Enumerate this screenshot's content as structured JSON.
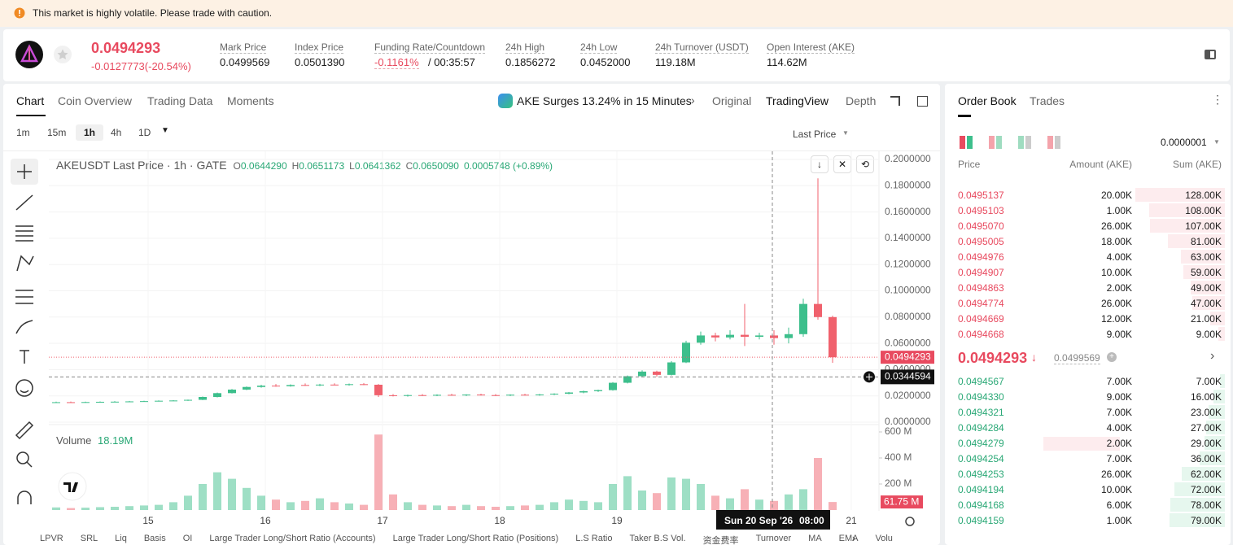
{
  "banner": {
    "text": "This market is highly volatile. Please trade with caution."
  },
  "ticker": {
    "price": "0.0494293",
    "change": "-0.0127773(-20.54%)",
    "stats": [
      {
        "label": "Mark Price",
        "value": "0.0499569"
      },
      {
        "label": "Index Price",
        "value": "0.0501390"
      },
      {
        "label": "Funding Rate/Countdown",
        "value": "-0.1161%",
        "extra": "/ 00:35:57"
      },
      {
        "label": "24h High",
        "value": "0.1856272"
      },
      {
        "label": "24h Low",
        "value": "0.0452000"
      },
      {
        "label": "24h Turnover (USDT)",
        "value": "119.18M"
      },
      {
        "label": "Open Interest (AKE)",
        "value": "114.62M"
      }
    ]
  },
  "chart_tabs": [
    "Chart",
    "Coin Overview",
    "Trading Data",
    "Moments"
  ],
  "news": "AKE Surges 13.24% in 15 Minutes",
  "view_tabs": [
    "Original",
    "TradingView",
    "Depth"
  ],
  "intervals": [
    "1m",
    "15m",
    "1h",
    "4h",
    "1D"
  ],
  "price_type": "Last Price",
  "chart_data": {
    "type": "candlestick",
    "title": "AKEUSDT Last Price · 1h · GATE",
    "ohlc_labels": [
      {
        "key": "O",
        "value": "0.0644290"
      },
      {
        "key": "H",
        "value": "0.0651173"
      },
      {
        "key": "L",
        "value": "0.0641362"
      },
      {
        "key": "C",
        "value": "0.0650090"
      }
    ],
    "change_label": "0.0005748 (+0.89%)",
    "up_color": "#3dbf8c",
    "down_color": "#f0616d",
    "candles": [
      [
        0.015,
        0.0156,
        0.0147,
        0.0152
      ],
      [
        0.0152,
        0.0157,
        0.0149,
        0.0151
      ],
      [
        0.0151,
        0.0156,
        0.0148,
        0.0153
      ],
      [
        0.0153,
        0.0158,
        0.015,
        0.0155
      ],
      [
        0.0155,
        0.016,
        0.0152,
        0.0156
      ],
      [
        0.0156,
        0.0162,
        0.0153,
        0.0158
      ],
      [
        0.0158,
        0.0163,
        0.0155,
        0.016
      ],
      [
        0.016,
        0.0166,
        0.0157,
        0.0163
      ],
      [
        0.0163,
        0.0168,
        0.016,
        0.0165
      ],
      [
        0.0165,
        0.0172,
        0.0162,
        0.017
      ],
      [
        0.017,
        0.0195,
        0.0168,
        0.0192
      ],
      [
        0.0192,
        0.0225,
        0.0188,
        0.0221
      ],
      [
        0.0221,
        0.0252,
        0.0218,
        0.0248
      ],
      [
        0.0248,
        0.0272,
        0.0244,
        0.0268
      ],
      [
        0.0268,
        0.0285,
        0.0262,
        0.0278
      ],
      [
        0.0278,
        0.029,
        0.027,
        0.0274
      ],
      [
        0.0274,
        0.0288,
        0.027,
        0.0283
      ],
      [
        0.0283,
        0.0295,
        0.0276,
        0.028
      ],
      [
        0.028,
        0.0292,
        0.0274,
        0.0286
      ],
      [
        0.0286,
        0.0296,
        0.028,
        0.0284
      ],
      [
        0.0284,
        0.0294,
        0.0278,
        0.0289
      ],
      [
        0.0289,
        0.0298,
        0.0282,
        0.0285
      ],
      [
        0.0285,
        0.029,
        0.0192,
        0.0205
      ],
      [
        0.0205,
        0.0214,
        0.0196,
        0.02
      ],
      [
        0.02,
        0.021,
        0.0194,
        0.0206
      ],
      [
        0.0206,
        0.0214,
        0.02,
        0.0203
      ],
      [
        0.0203,
        0.0212,
        0.0198,
        0.0208
      ],
      [
        0.0208,
        0.0216,
        0.0202,
        0.0205
      ],
      [
        0.0205,
        0.0213,
        0.0199,
        0.021
      ],
      [
        0.021,
        0.0217,
        0.0203,
        0.0206
      ],
      [
        0.0206,
        0.0214,
        0.02,
        0.0204
      ],
      [
        0.0204,
        0.0212,
        0.0199,
        0.0209
      ],
      [
        0.0209,
        0.0216,
        0.0203,
        0.0207
      ],
      [
        0.0207,
        0.0215,
        0.0201,
        0.0211
      ],
      [
        0.0211,
        0.022,
        0.0206,
        0.0217
      ],
      [
        0.0217,
        0.023,
        0.0212,
        0.0226
      ],
      [
        0.0226,
        0.024,
        0.022,
        0.0236
      ],
      [
        0.0236,
        0.0248,
        0.023,
        0.0244
      ],
      [
        0.0244,
        0.0305,
        0.024,
        0.03
      ],
      [
        0.03,
        0.0355,
        0.0295,
        0.035
      ],
      [
        0.035,
        0.0395,
        0.0342,
        0.0385
      ],
      [
        0.0385,
        0.0392,
        0.0345,
        0.036
      ],
      [
        0.036,
        0.0465,
        0.0355,
        0.0455
      ],
      [
        0.0455,
        0.062,
        0.045,
        0.0605
      ],
      [
        0.0605,
        0.069,
        0.059,
        0.066
      ],
      [
        0.066,
        0.068,
        0.0615,
        0.0645
      ],
      [
        0.0645,
        0.07,
        0.063,
        0.0665
      ],
      [
        0.0665,
        0.09,
        0.058,
        0.065
      ],
      [
        0.065,
        0.068,
        0.063,
        0.066
      ],
      [
        0.066,
        0.07,
        0.059,
        0.064
      ],
      [
        0.064,
        0.072,
        0.06,
        0.067
      ],
      [
        0.067,
        0.094,
        0.065,
        0.09
      ],
      [
        0.09,
        0.1856,
        0.078,
        0.08
      ],
      [
        0.08,
        0.081,
        0.0452,
        0.0494
      ]
    ],
    "ylim": [
      0,
      0.2
    ],
    "yticks": [
      {
        "value": 0.2,
        "label": "0.2000000"
      },
      {
        "value": 0.18,
        "label": "0.1800000"
      },
      {
        "value": 0.16,
        "label": "0.1600000"
      },
      {
        "value": 0.14,
        "label": "0.1400000"
      },
      {
        "value": 0.12,
        "label": "0.1200000"
      },
      {
        "value": 0.1,
        "label": "0.1000000"
      },
      {
        "value": 0.08,
        "label": "0.0800000"
      },
      {
        "value": 0.06,
        "label": "0.0600000"
      },
      {
        "value": 0.04,
        "label": "0.0400000"
      },
      {
        "value": 0.02,
        "label": "0.0200000"
      },
      {
        "value": 0,
        "label": "0.0000000"
      }
    ],
    "xticks": [
      {
        "value": 6.28,
        "label": "15"
      },
      {
        "value": 14.28,
        "label": "16"
      },
      {
        "value": 22.28,
        "label": "17"
      },
      {
        "value": 30.28,
        "label": "18"
      },
      {
        "value": 38.28,
        "label": "19"
      },
      {
        "value": 54.28,
        "label": "21"
      }
    ],
    "last_price": 0.0494293,
    "crosshair": {
      "value": 0.0344594,
      "date": "Sun 20 Sep '26",
      "time": "08:00"
    },
    "volume": {
      "title": "Volume",
      "value_label": "18.19M",
      "ylim": [
        0,
        600
      ],
      "yticks": [
        {
          "value": 600,
          "label": "600 M"
        },
        {
          "value": 400,
          "label": "400 M"
        },
        {
          "value": 200,
          "label": "200 M"
        }
      ],
      "values": [
        20,
        15,
        18,
        22,
        25,
        30,
        35,
        40,
        60,
        110,
        200,
        290,
        240,
        170,
        110,
        80,
        60,
        70,
        90,
        60,
        50,
        40,
        580,
        120,
        60,
        40,
        35,
        30,
        40,
        30,
        25,
        30,
        35,
        40,
        60,
        80,
        70,
        60,
        200,
        260,
        150,
        130,
        250,
        240,
        200,
        110,
        90,
        160,
        80,
        70,
        120,
        160,
        400,
        61.75
      ],
      "value_labels": {
        "53": "61.75 M"
      }
    }
  },
  "bottom_tools": [
    "LPVR",
    "SRL",
    "Liq",
    "Basis",
    "OI",
    "Large Trader Long/Short Ratio (Accounts)",
    "Large Trader Long/Short Ratio (Positions)",
    "L.S Ratio",
    "Taker B.S Vol.",
    "资金费率",
    "Turnover",
    "MA",
    "EMA",
    "Volu"
  ],
  "order_book": {
    "tabs": [
      "Order Book",
      "Trades"
    ],
    "tick_size": "0.0000001",
    "headers": [
      "Price",
      "Amount (AKE)",
      "Sum (AKE)"
    ],
    "asks": [
      [
        "0.0495137",
        "20.00K",
        "128.00K"
      ],
      [
        "0.0495103",
        "1.00K",
        "108.00K"
      ],
      [
        "0.0495070",
        "26.00K",
        "107.00K"
      ],
      [
        "0.0495005",
        "18.00K",
        "81.00K"
      ],
      [
        "0.0494976",
        "4.00K",
        "63.00K"
      ],
      [
        "0.0494907",
        "10.00K",
        "59.00K"
      ],
      [
        "0.0494863",
        "2.00K",
        "49.00K"
      ],
      [
        "0.0494774",
        "26.00K",
        "47.00K"
      ],
      [
        "0.0494669",
        "12.00K",
        "21.00K"
      ],
      [
        "0.0494668",
        "9.00K",
        "9.00K"
      ]
    ],
    "mid_price": "0.0494293",
    "mark_price": "0.0499569",
    "bids": [
      [
        "0.0494567",
        "7.00K",
        "7.00K"
      ],
      [
        "0.0494330",
        "9.00K",
        "16.00K"
      ],
      [
        "0.0494321",
        "7.00K",
        "23.00K"
      ],
      [
        "0.0494284",
        "4.00K",
        "27.00K"
      ],
      [
        "0.0494279",
        "2.00K",
        "29.00K"
      ],
      [
        "0.0494254",
        "7.00K",
        "36.00K"
      ],
      [
        "0.0494253",
        "26.00K",
        "62.00K"
      ],
      [
        "0.0494194",
        "10.00K",
        "72.00K"
      ],
      [
        "0.0494168",
        "6.00K",
        "78.00K"
      ],
      [
        "0.0494159",
        "1.00K",
        "79.00K"
      ]
    ]
  }
}
